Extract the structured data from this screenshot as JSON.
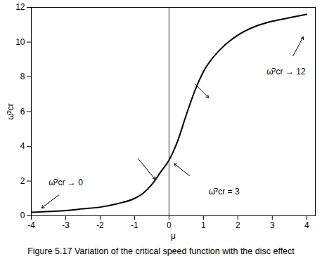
{
  "chart_data": {
    "type": "line",
    "caption": "Figure 5.17 Variation of the critical speed function with the disc effect",
    "x_label": "μ",
    "y_label": "ω̄²cr",
    "x": [
      -4,
      -3.5,
      -3,
      -2.5,
      -2,
      -1.5,
      -1,
      -0.75,
      -0.5,
      -0.25,
      0,
      0.25,
      0.5,
      0.75,
      1,
      1.5,
      2,
      2.5,
      3,
      3.5,
      4
    ],
    "values": [
      0.2,
      0.25,
      0.3,
      0.4,
      0.5,
      0.7,
      1.0,
      1.3,
      1.8,
      2.5,
      3.2,
      4.3,
      5.8,
      7.2,
      8.3,
      9.6,
      10.4,
      10.9,
      11.2,
      11.4,
      11.6
    ],
    "color": "#000000",
    "xlim": [
      -4,
      4.25
    ],
    "xticks": [
      -4,
      -3,
      -2,
      -1,
      0,
      1,
      2,
      3,
      4
    ],
    "ylim": [
      0,
      12
    ],
    "yticks": [
      0,
      2,
      4,
      6,
      8,
      10,
      12
    ],
    "vlines": [
      0
    ],
    "annotations": [
      "ω̄²cr → 0",
      "ω̄²cr = 3",
      "ω̄²cr → 12"
    ],
    "grid": false
  }
}
